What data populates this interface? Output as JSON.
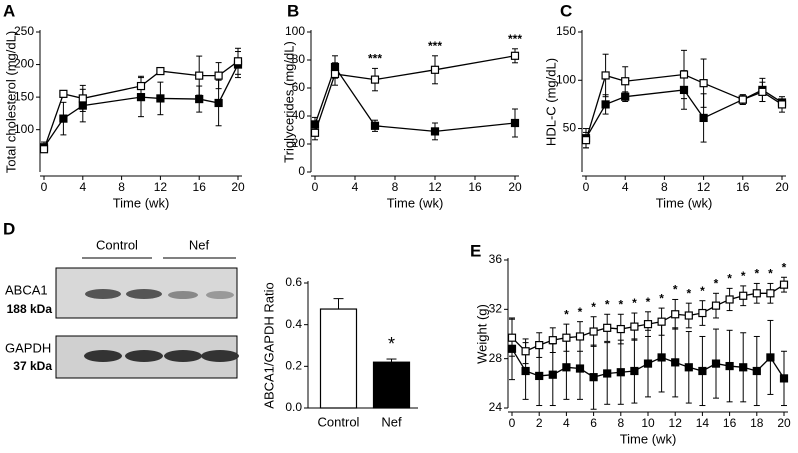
{
  "chart_data": [
    {
      "type": "line",
      "panel_label": "A",
      "y_label": "Total cholesterol (mg/dL)",
      "x_label": "Time (wk)",
      "x": [
        0,
        2,
        4,
        10,
        12,
        16,
        18,
        20
      ],
      "xlim": [
        0,
        20
      ],
      "xticks": [
        0,
        4,
        8,
        12,
        16,
        20
      ],
      "ylim": [
        35,
        250
      ],
      "yticks": [
        100,
        150,
        200,
        250
      ],
      "series": [
        {
          "marker": "filled-square",
          "color": "#000000",
          "values": [
            73,
            117,
            137,
            150,
            148,
            147,
            141,
            200
          ],
          "errors": [
            8,
            25,
            25,
            30,
            25,
            20,
            35,
            20
          ]
        },
        {
          "marker": "open-square",
          "color": "#000000",
          "values": [
            70,
            155,
            148,
            167,
            190,
            183,
            183,
            205
          ],
          "errors": [
            5,
            5,
            20,
            15,
            5,
            30,
            20,
            20
          ]
        }
      ]
    },
    {
      "type": "line",
      "panel_label": "B",
      "y_label": "Triglycerides (mg/dL)",
      "x_label": "Time (wk)",
      "x": [
        0,
        2,
        6,
        12,
        20
      ],
      "xlim": [
        0,
        20
      ],
      "xticks": [
        0,
        4,
        8,
        12,
        16,
        20
      ],
      "ylim": [
        0,
        100
      ],
      "yticks": [
        0,
        20,
        40,
        60,
        80,
        100
      ],
      "series": [
        {
          "marker": "filled-square",
          "color": "#000000",
          "values": [
            34,
            75,
            33,
            29,
            35
          ],
          "errors": [
            5,
            8,
            4,
            6,
            10
          ]
        },
        {
          "marker": "open-square",
          "color": "#000000",
          "values": [
            28,
            70,
            66,
            73,
            83
          ],
          "errors": [
            5,
            8,
            8,
            10,
            5
          ]
        }
      ],
      "annotations": [
        {
          "x": 6,
          "text": "***"
        },
        {
          "x": 12,
          "text": "***"
        },
        {
          "x": 20,
          "text": "***"
        }
      ]
    },
    {
      "type": "line",
      "panel_label": "C",
      "y_label": "HDL-C (mg/dL)",
      "x_label": "Time (wk)",
      "x": [
        0,
        2,
        4,
        10,
        12,
        16,
        18,
        20
      ],
      "xlim": [
        0,
        20
      ],
      "xticks": [
        0,
        4,
        8,
        12,
        16,
        20
      ],
      "ylim": [
        5,
        150
      ],
      "yticks": [
        50,
        100,
        150
      ],
      "series": [
        {
          "marker": "filled-square",
          "color": "#000000",
          "values": [
            40,
            75,
            83,
            90,
            61,
            80,
            90,
            77
          ],
          "errors": [
            10,
            10,
            5,
            20,
            25,
            5,
            12,
            3
          ]
        },
        {
          "marker": "open-square",
          "color": "#000000",
          "values": [
            38,
            105,
            99,
            106,
            97,
            80,
            88,
            75
          ],
          "errors": [
            8,
            22,
            15,
            25,
            25,
            5,
            10,
            8
          ]
        }
      ]
    },
    {
      "type": "bar",
      "y_label": "ABCA1/GAPDH Ratio",
      "categories": [
        "Control",
        "Nef"
      ],
      "values": [
        0.475,
        0.22
      ],
      "errors": [
        0.05,
        0.015
      ],
      "colors": [
        "#ffffff",
        "#000000"
      ],
      "ylim": [
        0,
        0.6
      ],
      "yticks": [
        {
          "value": 0,
          "label": "0.0"
        },
        0.2,
        0.4,
        0.6
      ],
      "annotations": [
        {
          "category": "Nef",
          "text": "*"
        }
      ],
      "blot": {
        "panel_label": "D",
        "groups": [
          "Control",
          "Nef"
        ],
        "bands": [
          {
            "protein": "ABCA1",
            "size": "188 kDa"
          },
          {
            "protein": "GAPDH",
            "size": "37 kDa"
          }
        ]
      }
    },
    {
      "type": "line",
      "panel_label": "E",
      "y_label": "Weight (g)",
      "x_label": "Time (wk)",
      "x": [
        0,
        1,
        2,
        3,
        4,
        5,
        6,
        7,
        8,
        9,
        10,
        11,
        12,
        13,
        14,
        15,
        16,
        17,
        18,
        19,
        20
      ],
      "xlim": [
        0,
        20
      ],
      "xticks": [
        0,
        2,
        4,
        6,
        8,
        10,
        12,
        14,
        16,
        18,
        20
      ],
      "ylim": [
        24,
        36
      ],
      "yticks": [
        24,
        28,
        32,
        36
      ],
      "series": [
        {
          "marker": "filled-square",
          "color": "#000000",
          "values": [
            28.8,
            27.0,
            26.6,
            26.7,
            27.3,
            27.2,
            26.5,
            26.8,
            26.9,
            27.0,
            27.6,
            28.1,
            27.7,
            27.3,
            27.0,
            27.6,
            27.4,
            27.3,
            27.0,
            28.1,
            26.4
          ],
          "errors": [
            2.5,
            2.3,
            2.4,
            2.5,
            2.6,
            2.5,
            2.6,
            2.5,
            2.6,
            2.6,
            2.7,
            2.8,
            2.8,
            2.9,
            2.8,
            2.8,
            2.9,
            2.8,
            2.8,
            3.0,
            2.2
          ]
        },
        {
          "marker": "open-square",
          "color": "#000000",
          "values": [
            29.7,
            28.6,
            29.1,
            29.5,
            29.7,
            29.8,
            30.2,
            30.5,
            30.4,
            30.6,
            30.8,
            31.0,
            31.6,
            31.5,
            31.7,
            32.3,
            32.8,
            33.1,
            33.3,
            33.3,
            34.0
          ],
          "errors": [
            1.5,
            1.0,
            1.0,
            1.0,
            1.1,
            1.2,
            1.2,
            1.1,
            1.2,
            1.1,
            1.0,
            1.1,
            1.2,
            1.0,
            1.0,
            1.0,
            0.9,
            0.8,
            0.8,
            0.8,
            0.6
          ]
        }
      ],
      "annotations": [
        {
          "x": 4,
          "text": "*"
        },
        {
          "x": 5,
          "text": "*"
        },
        {
          "x": 6,
          "text": "*"
        },
        {
          "x": 7,
          "text": "*"
        },
        {
          "x": 8,
          "text": "*"
        },
        {
          "x": 9,
          "text": "*"
        },
        {
          "x": 10,
          "text": "*"
        },
        {
          "x": 11,
          "text": "*"
        },
        {
          "x": 12,
          "text": "*"
        },
        {
          "x": 13,
          "text": "*"
        },
        {
          "x": 14,
          "text": "*"
        },
        {
          "x": 15,
          "text": "*"
        },
        {
          "x": 16,
          "text": "*"
        },
        {
          "x": 17,
          "text": "*"
        },
        {
          "x": 18,
          "text": "*"
        },
        {
          "x": 19,
          "text": "*"
        },
        {
          "x": 20,
          "text": "*"
        }
      ]
    }
  ]
}
